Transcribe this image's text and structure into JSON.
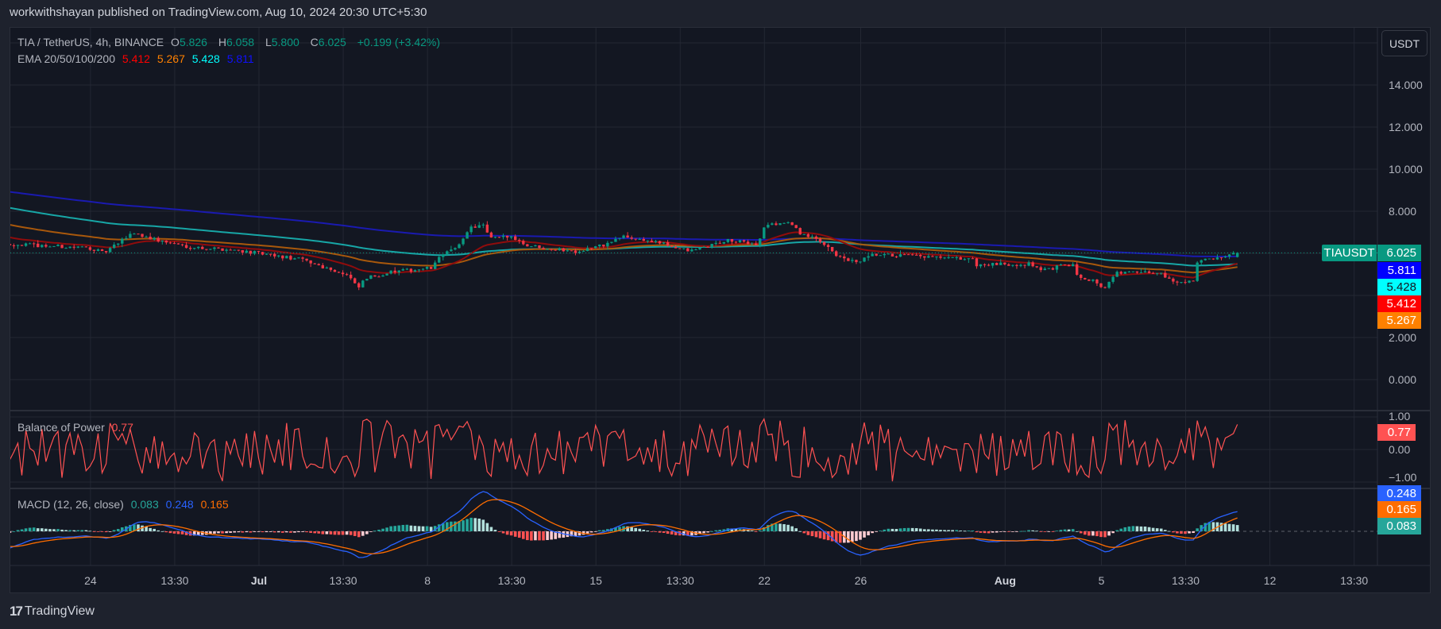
{
  "publish_line": "workwithshayan published on TradingView.com, Aug 10, 2024 20:30 UTC+5:30",
  "legend": {
    "symbol": "TIA / TetherUS, 4h, BINANCE",
    "o_label": "O",
    "o": "5.826",
    "h_label": "H",
    "h": "6.058",
    "l_label": "L",
    "l": "5.800",
    "c_label": "C",
    "c": "6.025",
    "change": "+0.199 (+3.42%)",
    "ema_title": "EMA 20/50/100/200",
    "ema20": "5.412",
    "ema50": "5.267",
    "ema100": "5.428",
    "ema200": "5.811"
  },
  "currency_button": "USDT",
  "price_axis": [
    "14.000",
    "12.000",
    "10.000",
    "8.000",
    "2.000",
    "0.000"
  ],
  "badges": {
    "symbol": "TIAUSDT",
    "last": "6.025",
    "ema200": "5.811",
    "ema100": "5.428",
    "ema20": "5.412",
    "ema50": "5.267",
    "bop": "0.77",
    "macd": "0.248",
    "signal": "0.165",
    "hist": "0.083"
  },
  "bop": {
    "title": "Balance of Power",
    "value": "0.77",
    "axis": [
      "1.00",
      "0.00",
      "−1.00"
    ]
  },
  "macd": {
    "title": "MACD (12, 26, close)",
    "hist": "0.083",
    "macd": "0.248",
    "signal": "0.165"
  },
  "time_axis": [
    {
      "label": "24",
      "day": -7
    },
    {
      "label": "13:30",
      "day": -3.5
    },
    {
      "label": "Jul",
      "day": 0,
      "bold": true
    },
    {
      "label": "13:30",
      "day": 3.5
    },
    {
      "label": "8",
      "day": 7
    },
    {
      "label": "13:30",
      "day": 10.5
    },
    {
      "label": "15",
      "day": 14
    },
    {
      "label": "13:30",
      "day": 17.5
    },
    {
      "label": "22",
      "day": 21
    },
    {
      "label": "26",
      "day": 25
    },
    {
      "label": "Aug",
      "day": 31,
      "bold": true
    },
    {
      "label": "5",
      "day": 35
    },
    {
      "label": "13:30",
      "day": 38.5
    },
    {
      "label": "12",
      "day": 42
    },
    {
      "label": "13:30",
      "day": 45.5
    }
  ],
  "footer_logo": "TradingView",
  "colors": {
    "up": "#089981",
    "down": "#f23645",
    "ema20": "#ff0000",
    "ema50": "#ff8000",
    "ema100": "#00ffff",
    "ema200": "#0000ff",
    "bop": "#ff5252",
    "macd": "#2962ff",
    "signal": "#ff6d00"
  },
  "chart_data": {
    "type": "candlestick",
    "symbol": "TIAUSDT",
    "timeframe": "4h",
    "day_origin": "Jul 1",
    "candles_per_day": 6,
    "candle_count": 307,
    "last_day": 40.65,
    "last_candle": {
      "o": 5.826,
      "h": 6.058,
      "l": 5.8,
      "c": 6.025
    },
    "ylim": [
      -0.6,
      16.4
    ],
    "price_path": [
      [
        -10.36,
        6.45
      ],
      [
        -8.78,
        6.35
      ],
      [
        -6.96,
        6.25
      ],
      [
        -6.47,
        6.0
      ],
      [
        -5.81,
        6.5
      ],
      [
        -5.28,
        7.0
      ],
      [
        -4.16,
        6.6
      ],
      [
        -2.84,
        6.3
      ],
      [
        -0.86,
        6.15
      ],
      [
        0.46,
        5.9
      ],
      [
        1.78,
        5.7
      ],
      [
        3.1,
        5.2
      ],
      [
        3.76,
        4.9
      ],
      [
        4.09,
        4.3
      ],
      [
        4.42,
        4.8
      ],
      [
        5.41,
        5.1
      ],
      [
        6.73,
        5.25
      ],
      [
        7.23,
        5.3
      ],
      [
        7.56,
        6.0
      ],
      [
        8.22,
        6.2
      ],
      [
        8.71,
        7.2
      ],
      [
        9.37,
        7.35
      ],
      [
        9.54,
        6.7
      ],
      [
        10.56,
        6.8
      ],
      [
        11.06,
        6.4
      ],
      [
        12.34,
        6.2
      ],
      [
        13.2,
        6.1
      ],
      [
        14.36,
        6.4
      ],
      [
        15.12,
        6.8
      ],
      [
        16.63,
        6.5
      ],
      [
        17.89,
        6.1
      ],
      [
        19.41,
        6.6
      ],
      [
        20.76,
        6.45
      ],
      [
        20.99,
        7.3
      ],
      [
        21.95,
        7.5
      ],
      [
        22.44,
        7.0
      ],
      [
        23.6,
        6.4
      ],
      [
        24.09,
        5.8
      ],
      [
        24.85,
        5.55
      ],
      [
        25.48,
        5.9
      ],
      [
        26.73,
        5.9
      ],
      [
        28.65,
        5.75
      ],
      [
        29.6,
        5.75
      ],
      [
        29.83,
        5.45
      ],
      [
        32.05,
        5.5
      ],
      [
        32.57,
        5.2
      ],
      [
        33.8,
        5.5
      ],
      [
        33.9,
        5.0
      ],
      [
        34.69,
        4.7
      ],
      [
        35.12,
        4.35
      ],
      [
        35.68,
        5.1
      ],
      [
        37.53,
        5.05
      ],
      [
        38.0,
        4.6
      ],
      [
        38.84,
        4.75
      ],
      [
        39.0,
        5.65
      ],
      [
        40.06,
        5.75
      ],
      [
        40.65,
        6.025
      ]
    ],
    "ema_start": {
      "ema20": 6.8,
      "ema50": 7.4,
      "ema100": 8.2,
      "ema200": 8.95
    },
    "macd_start": {
      "ema12": 6.3,
      "ema26": 6.55,
      "signal": -0.2
    },
    "bop_range": [
      -1,
      1
    ],
    "macd_range": [
      -0.45,
      0.6
    ]
  }
}
